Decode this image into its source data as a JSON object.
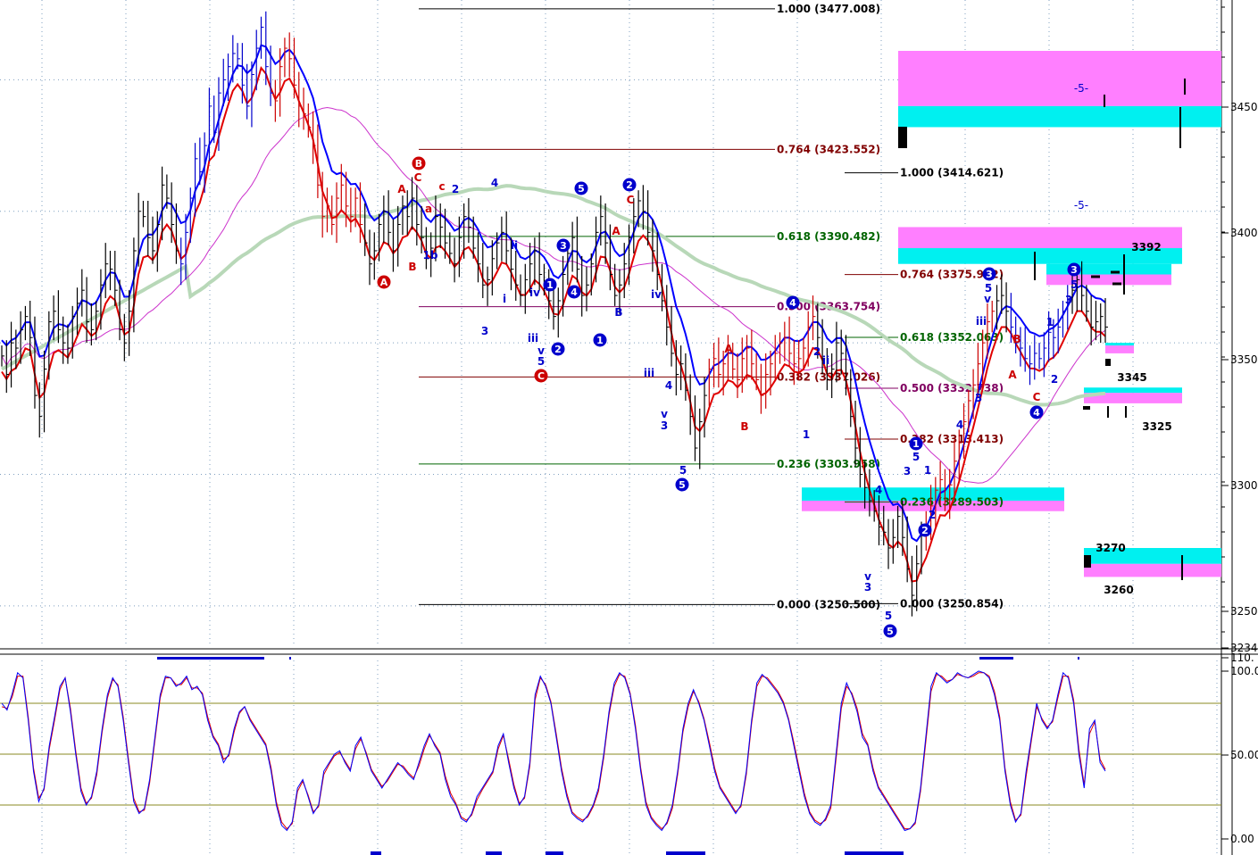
{
  "colors": {
    "background": "#ffffff",
    "price_bar": "#000000",
    "bar_blue": "#0000cc",
    "bar_red": "#cc0000",
    "ma_blue": "#0000ff",
    "ma_red": "#e00000",
    "ma_magenta": "#cc33cc",
    "ma_green": "#b8d8b8",
    "zone_magenta": "#ff7fff",
    "zone_cyan": "#00f0f0",
    "wave_blue": "#0000cc",
    "wave_red": "#cc0000",
    "fib_black": "#000000",
    "fib_darkred": "#800000",
    "fib_green": "#006400",
    "fib_purple": "#800060",
    "stoch_k": "#0000ff",
    "stoch_d": "#e00000",
    "stoch_level": "#8a8a20",
    "grid_dot": "#7f9fbf"
  },
  "chart_data": [
    {
      "type": "candlestick",
      "ylim": [
        3234,
        3480
      ],
      "y_ticks": [
        "3450.",
        "3400.",
        "3350.",
        "3300.",
        "3250.",
        "3234"
      ],
      "close": [
        3345,
        3338,
        3350,
        3348,
        3355,
        3360,
        3352,
        3330,
        3322,
        3340,
        3358,
        3362,
        3355,
        3350,
        3348,
        3360,
        3365,
        3370,
        3358,
        3355,
        3362,
        3372,
        3380,
        3378,
        3370,
        3355,
        3350,
        3362,
        3385,
        3400,
        3398,
        3390,
        3385,
        3395,
        3410,
        3405,
        3395,
        3385,
        3380,
        3392,
        3405,
        3420,
        3415,
        3425,
        3440,
        3430,
        3445,
        3450,
        3455,
        3460,
        3458,
        3448,
        3440,
        3452,
        3462,
        3470,
        3455,
        3445,
        3442,
        3455,
        3462,
        3458,
        3448,
        3440,
        3437,
        3432,
        3425,
        3410,
        3398,
        3402,
        3395,
        3405,
        3410,
        3402,
        3398,
        3405,
        3395,
        3388,
        3380,
        3385,
        3395,
        3400,
        3392,
        3385,
        3395,
        3402,
        3398,
        3405,
        3395,
        3390,
        3382,
        3386,
        3398,
        3394,
        3388,
        3384,
        3380,
        3390,
        3398,
        3394,
        3386,
        3380,
        3372,
        3374,
        3382,
        3388,
        3392,
        3385,
        3378,
        3372,
        3368,
        3374,
        3380,
        3385,
        3376,
        3372,
        3366,
        3360,
        3366,
        3376,
        3384,
        3390,
        3378,
        3368,
        3372,
        3380,
        3392,
        3398,
        3388,
        3376,
        3368,
        3372,
        3380,
        3390,
        3398,
        3404,
        3400,
        3392,
        3385,
        3376,
        3366,
        3356,
        3346,
        3338,
        3342,
        3332,
        3322,
        3310,
        3320,
        3330,
        3340,
        3344,
        3338,
        3342,
        3346,
        3340,
        3336,
        3344,
        3348,
        3342,
        3336,
        3330,
        3338,
        3342,
        3346,
        3350,
        3352,
        3346,
        3342,
        3344,
        3348,
        3356,
        3360,
        3352,
        3344,
        3336,
        3340,
        3350,
        3346,
        3336,
        3322,
        3310,
        3300,
        3295,
        3290,
        3286,
        3280,
        3278,
        3272,
        3276,
        3284,
        3276,
        3264,
        3254,
        3266,
        3278,
        3280,
        3288,
        3294,
        3298,
        3290,
        3296,
        3305,
        3312,
        3320,
        3328,
        3334,
        3342,
        3350,
        3358,
        3362,
        3366,
        3368,
        3362,
        3356,
        3350,
        3348,
        3344,
        3342,
        3346,
        3344,
        3348,
        3354,
        3352,
        3356,
        3362,
        3366,
        3370,
        3374,
        3368,
        3362,
        3356,
        3358,
        3360,
        3356
      ],
      "moving_averages": [
        "blue",
        "red",
        "magenta",
        "green"
      ],
      "fib_labels": [
        "1.000 (3477.008)",
        "0.764 (3423.552)",
        "0.618 (3390.482)",
        "0.500 (3363.754)",
        "0.382 (3337.026)",
        "0.236 (3303.958)",
        "0.000 (3250.500)",
        "1.000 (3414.621)",
        "0.764 (3375.972)",
        "0.618 (3352.063)",
        "0.500 (3332.738)",
        "0.382 (3313.413)",
        "0.236 (3289.503)",
        "0.000 (3250.854)"
      ],
      "fib_values": [
        3477.008,
        3423.552,
        3390.482,
        3363.754,
        3337.026,
        3303.958,
        3250.5,
        3414.621,
        3375.972,
        3352.063,
        3332.738,
        3313.413,
        3289.503,
        3250.854
      ],
      "zones": [
        {
          "magenta": [
            3440,
            3461
          ],
          "cyan": [
            3432,
            3440
          ]
        },
        {
          "magenta": [
            3386,
            3394
          ],
          "cyan": [
            3380,
            3386
          ]
        },
        {
          "magenta": [
            3372,
            3376
          ],
          "cyan": [
            3376,
            3380
          ]
        },
        {
          "magenta": [
            3346,
            3349
          ],
          "cyan": [
            3349,
            3350
          ]
        },
        {
          "magenta": [
            3327,
            3331
          ],
          "cyan": [
            3331,
            3333
          ]
        },
        {
          "magenta": [
            3286,
            3290
          ],
          "cyan": [
            3290,
            3295
          ]
        },
        {
          "magenta": [
            3261,
            3266
          ],
          "cyan": [
            3266,
            3272
          ]
        }
      ],
      "level_labels": [
        "3392",
        "3345",
        "3325",
        "3270",
        "3260"
      ],
      "wave_labels": [
        "-5-",
        "-5-"
      ],
      "wave_circles_blue": [
        "5",
        "2",
        "3",
        "1",
        "4",
        "2",
        "1",
        "4",
        "3",
        "1",
        "2",
        "5",
        "3",
        "5",
        "4"
      ],
      "wave_circles_red": [
        "B",
        "A",
        "C"
      ],
      "wave_text": [
        "A",
        "C",
        "c",
        "2",
        "a",
        "1b",
        "B",
        "4",
        "ii",
        "i",
        "3",
        "iv",
        "iii",
        "v",
        "5",
        "A",
        "C",
        "B",
        "iv",
        "iii",
        "4",
        "v",
        "3",
        "5",
        "A",
        "B",
        "2",
        "ii",
        "1",
        "v",
        "3",
        "5",
        "4",
        "1",
        "3",
        "2",
        "5",
        "3",
        "4",
        "iii",
        "v",
        "5",
        "B",
        "A",
        "C",
        "1",
        "2",
        "3",
        "5"
      ]
    },
    {
      "type": "line",
      "ylim": [
        0,
        100
      ],
      "y_ticks": [
        "110.",
        "100.0",
        "50.00",
        "0.00"
      ],
      "levels": [
        80,
        50,
        20
      ],
      "series": [
        {
          "values": [
            80,
            76,
            86,
            98,
            95,
            70,
            40,
            22,
            30,
            55,
            72,
            90,
            95,
            75,
            50,
            28,
            20,
            25,
            40,
            65,
            85,
            95,
            90,
            70,
            45,
            22,
            15,
            18,
            35,
            60,
            85,
            96,
            95,
            90,
            92,
            96,
            88,
            90,
            85,
            70,
            60,
            55,
            45,
            50,
            65,
            75,
            78,
            70,
            65,
            60,
            55,
            40,
            20,
            8,
            5,
            10,
            30,
            35,
            25,
            15,
            20,
            40,
            45,
            50,
            52,
            45,
            40,
            55,
            60,
            50,
            40,
            35,
            30,
            35,
            40,
            45,
            42,
            38,
            35,
            45,
            55,
            62,
            55,
            50,
            35,
            25,
            20,
            12,
            10,
            15,
            25,
            30,
            35,
            40,
            55,
            62,
            45,
            30,
            20,
            25,
            45,
            85,
            96,
            90,
            80,
            60,
            40,
            25,
            15,
            12,
            10,
            14,
            20,
            30,
            50,
            75,
            92,
            98,
            95,
            85,
            65,
            40,
            20,
            12,
            8,
            5,
            10,
            20,
            40,
            65,
            80,
            88,
            80,
            70,
            55,
            40,
            30,
            25,
            20,
            15,
            20,
            40,
            70,
            92,
            97,
            94,
            90,
            86,
            80,
            70,
            55,
            40,
            25,
            15,
            10,
            8,
            12,
            20,
            50,
            80,
            92,
            85,
            75,
            60,
            55,
            40,
            30,
            25,
            20,
            15,
            10,
            5,
            6,
            10,
            30,
            60,
            90,
            98,
            95,
            92,
            94,
            98,
            96,
            95,
            97,
            99,
            98,
            95,
            85,
            70,
            40,
            20,
            10,
            15,
            40,
            60,
            80,
            70,
            65,
            70,
            85,
            98,
            95,
            80,
            50,
            30,
            65,
            70,
            45,
            40
          ]
        },
        {
          "values": [
            78,
            77,
            84,
            96,
            96,
            72,
            42,
            24,
            29,
            53,
            70,
            88,
            95,
            77,
            52,
            30,
            21,
            24,
            38,
            63,
            83,
            94,
            91,
            72,
            47,
            24,
            16,
            17,
            33,
            58,
            83,
            95,
            95,
            91,
            91,
            95,
            89,
            89,
            86,
            72,
            61,
            56,
            47,
            49,
            63,
            74,
            78,
            71,
            66,
            61,
            56,
            42,
            22,
            10,
            6,
            9,
            28,
            34,
            26,
            16,
            19,
            38,
            44,
            49,
            51,
            46,
            41,
            53,
            59,
            51,
            41,
            36,
            31,
            34,
            39,
            44,
            43,
            39,
            36,
            43,
            53,
            61,
            56,
            51,
            37,
            27,
            21,
            13,
            11,
            14,
            23,
            29,
            34,
            39,
            53,
            61,
            47,
            32,
            21,
            24,
            43,
            82,
            95,
            91,
            81,
            62,
            42,
            27,
            16,
            13,
            11,
            13,
            19,
            28,
            48,
            73,
            90,
            97,
            96,
            86,
            67,
            42,
            22,
            13,
            9,
            6,
            9,
            18,
            38,
            63,
            78,
            87,
            81,
            71,
            57,
            42,
            31,
            26,
            21,
            16,
            19,
            38,
            68,
            90,
            96,
            95,
            91,
            87,
            81,
            71,
            57,
            42,
            27,
            16,
            11,
            9,
            11,
            18,
            47,
            77,
            90,
            86,
            77,
            62,
            56,
            42,
            31,
            26,
            21,
            16,
            11,
            6,
            6,
            9,
            28,
            57,
            87,
            97,
            96,
            93,
            94,
            97,
            96,
            95,
            96,
            98,
            98,
            96,
            87,
            72,
            42,
            22,
            11,
            14,
            37,
            58,
            78,
            71,
            66,
            69,
            83,
            96,
            96,
            82,
            53,
            32,
            62,
            69,
            47,
            41
          ]
        }
      ]
    }
  ]
}
